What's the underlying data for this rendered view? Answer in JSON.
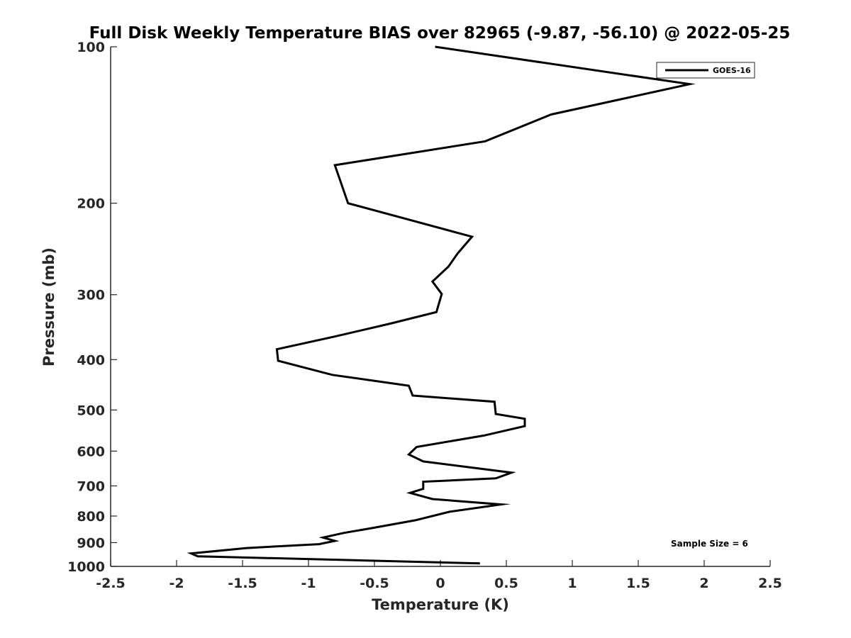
{
  "chart_data": {
    "type": "line",
    "title": "Full Disk Weekly Temperature BIAS over 82965 (-9.87, -56.10) @ 2022-05-25",
    "xlabel": "Temperature (K)",
    "ylabel": "Pressure (mb)",
    "xlim": [
      -2.5,
      2.5
    ],
    "ylim": [
      100,
      1000
    ],
    "yscale": "log",
    "yreversed": true,
    "grid": false,
    "legend_position": "top-right",
    "x_ticks": [
      -2.5,
      -2,
      -1.5,
      -1,
      -0.5,
      0,
      0.5,
      1,
      1.5,
      2,
      2.5
    ],
    "x_tick_labels": [
      "-2.5",
      "-2",
      "-1.5",
      "-1",
      "-0.5",
      "0",
      "0.5",
      "1",
      "1.5",
      "2",
      "2.5"
    ],
    "y_ticks": [
      100,
      200,
      300,
      400,
      500,
      600,
      700,
      800,
      900,
      1000
    ],
    "y_tick_labels": [
      "100",
      "200",
      "300",
      "400",
      "500",
      "600",
      "700",
      "800",
      "900",
      "1000"
    ],
    "annotation": "Sample Size = 6",
    "series": [
      {
        "name": "GOES-16",
        "color": "#000000",
        "points": [
          {
            "x": -0.04,
            "y": 100
          },
          {
            "x": 1.89,
            "y": 118
          },
          {
            "x": 0.84,
            "y": 135
          },
          {
            "x": 0.34,
            "y": 152
          },
          {
            "x": -0.8,
            "y": 169
          },
          {
            "x": -0.7,
            "y": 200
          },
          {
            "x": 0.24,
            "y": 232
          },
          {
            "x": 0.13,
            "y": 250
          },
          {
            "x": 0.06,
            "y": 265
          },
          {
            "x": -0.06,
            "y": 283
          },
          {
            "x": 0.01,
            "y": 299
          },
          {
            "x": -0.03,
            "y": 324
          },
          {
            "x": -0.38,
            "y": 341
          },
          {
            "x": -0.8,
            "y": 361
          },
          {
            "x": -1.24,
            "y": 382
          },
          {
            "x": -1.23,
            "y": 402
          },
          {
            "x": -0.82,
            "y": 428
          },
          {
            "x": -0.24,
            "y": 449
          },
          {
            "x": -0.21,
            "y": 469
          },
          {
            "x": 0.41,
            "y": 482
          },
          {
            "x": 0.42,
            "y": 509
          },
          {
            "x": 0.64,
            "y": 520
          },
          {
            "x": 0.64,
            "y": 537
          },
          {
            "x": 0.33,
            "y": 560
          },
          {
            "x": -0.18,
            "y": 589
          },
          {
            "x": -0.24,
            "y": 609
          },
          {
            "x": -0.13,
            "y": 628
          },
          {
            "x": 0.54,
            "y": 660
          },
          {
            "x": 0.42,
            "y": 677
          },
          {
            "x": -0.13,
            "y": 687
          },
          {
            "x": -0.13,
            "y": 709
          },
          {
            "x": -0.23,
            "y": 722
          },
          {
            "x": -0.06,
            "y": 742
          },
          {
            "x": 0.46,
            "y": 760
          },
          {
            "x": 0.07,
            "y": 785
          },
          {
            "x": -0.19,
            "y": 815
          },
          {
            "x": -0.52,
            "y": 844
          },
          {
            "x": -0.73,
            "y": 862
          },
          {
            "x": -0.89,
            "y": 880
          },
          {
            "x": -0.8,
            "y": 893
          },
          {
            "x": -0.92,
            "y": 906
          },
          {
            "x": -1.47,
            "y": 922
          },
          {
            "x": -1.89,
            "y": 944
          },
          {
            "x": -1.84,
            "y": 956
          },
          {
            "x": 0.3,
            "y": 987
          }
        ]
      }
    ]
  }
}
